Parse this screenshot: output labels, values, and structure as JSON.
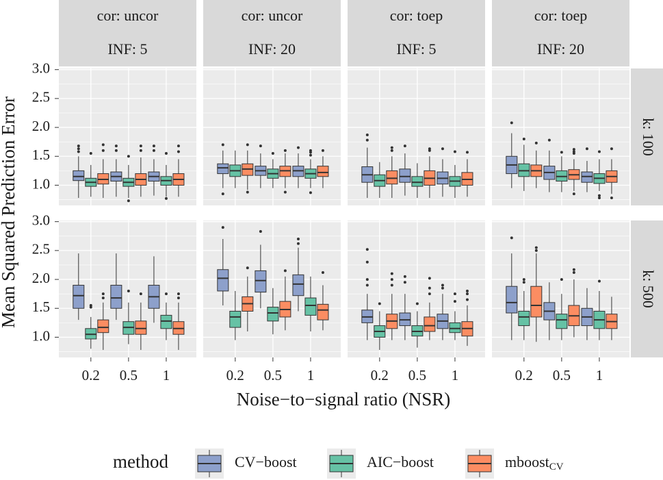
{
  "chart_data": {
    "type": "box",
    "xlabel": "Noise−to−signal ratio (NSR)",
    "ylabel": "Mean Squared Prediction Error",
    "legend_title": "method",
    "legend_position": "bottom",
    "categories": [
      "0.2",
      "0.5",
      "1"
    ],
    "series": [
      {
        "name": "CV−boost",
        "color": "#8da0cb"
      },
      {
        "name": "AIC−boost",
        "color": "#66c2a5"
      },
      {
        "name": "mboost",
        "name_subscript": "CV",
        "color": "#fc8d62"
      }
    ],
    "ylim": [
      0.65,
      3.02
    ],
    "yticks": [
      {
        "value": 1,
        "label": "1.0"
      },
      1.5,
      {
        "value": 2,
        "label": "2.0"
      },
      2.5,
      {
        "value": 3,
        "label": "3.0"
      }
    ],
    "minor_yticks": [
      0.75,
      1.25,
      1.75,
      2.25,
      2.75
    ],
    "grid": true,
    "col_strips": [
      [
        "cor: uncor",
        "INF: 5"
      ],
      [
        "cor: uncor",
        "INF: 20"
      ],
      [
        "cor: toep",
        "INF: 5"
      ],
      [
        "cor: toep",
        "INF: 20"
      ]
    ],
    "rows": [
      {
        "strip": "k: 100",
        "panels": [
          {
            "boxes": [
              [
                [
                  0.78,
                  1.08,
                  1.15,
                  1.25,
                  1.5,
                  [
                    1.58,
                    1.63,
                    1.68
                  ]
                ],
                [
                  0.8,
                  0.98,
                  1.05,
                  1.12,
                  1.35,
                  [
                    1.55
                  ]
                ],
                [
                  0.78,
                  1.02,
                  1.1,
                  1.2,
                  1.45,
                  [
                    1.6,
                    1.7
                  ]
                ]
              ],
              [
                [
                  0.8,
                  1.07,
                  1.15,
                  1.23,
                  1.45,
                  [
                    1.6,
                    1.68
                  ]
                ],
                [
                  0.78,
                  0.98,
                  1.05,
                  1.12,
                  1.35,
                  [
                    1.5,
                    0.73
                  ]
                ],
                [
                  0.8,
                  1.0,
                  1.1,
                  1.2,
                  1.48,
                  [
                    1.6,
                    1.68
                  ]
                ]
              ],
              [
                [
                  0.82,
                  1.07,
                  1.15,
                  1.23,
                  1.45,
                  [
                    1.6,
                    1.68
                  ]
                ],
                [
                  0.8,
                  1.0,
                  1.08,
                  1.15,
                  1.35,
                  [
                    1.55,
                    0.77
                  ]
                ],
                [
                  0.8,
                  1.0,
                  1.1,
                  1.2,
                  1.45,
                  [
                    1.58,
                    1.68
                  ]
                ]
              ]
            ]
          },
          {
            "boxes": [
              [
                [
                  0.95,
                  1.2,
                  1.3,
                  1.37,
                  1.6,
                  [
                    1.7,
                    0.85
                  ]
                ],
                [
                  0.95,
                  1.15,
                  1.25,
                  1.35,
                  1.6,
                  []
                ],
                [
                  0.92,
                  1.17,
                  1.28,
                  1.37,
                  1.6,
                  [
                    1.7,
                    0.88
                  ]
                ]
              ],
              [
                [
                  0.95,
                  1.17,
                  1.25,
                  1.33,
                  1.55,
                  [
                    1.68
                  ]
                ],
                [
                  0.95,
                  1.12,
                  1.2,
                  1.28,
                  1.45,
                  [
                    1.55
                  ]
                ],
                [
                  0.95,
                  1.15,
                  1.25,
                  1.33,
                  1.55,
                  [
                    0.88,
                    1.6
                  ]
                ]
              ],
              [
                [
                  0.95,
                  1.15,
                  1.25,
                  1.33,
                  1.55,
                  [
                    1.65
                  ]
                ],
                [
                  0.95,
                  1.12,
                  1.2,
                  1.28,
                  1.45,
                  [
                    1.52,
                    1.57,
                    1.6,
                    0.87
                  ]
                ],
                [
                  0.95,
                  1.15,
                  1.22,
                  1.33,
                  1.5,
                  [
                    1.6
                  ]
                ]
              ]
            ]
          },
          {
            "boxes": [
              [
                [
                  0.78,
                  1.05,
                  1.18,
                  1.32,
                  1.65,
                  [
                    1.78,
                    1.87
                  ]
                ],
                [
                  0.78,
                  0.98,
                  1.08,
                  1.18,
                  1.4,
                  []
                ],
                [
                  0.78,
                  1.02,
                  1.12,
                  1.25,
                  1.5,
                  [
                    1.6,
                    1.65
                  ]
                ]
              ],
              [
                [
                  0.82,
                  1.05,
                  1.15,
                  1.28,
                  1.55,
                  [
                    1.68
                  ]
                ],
                [
                  0.78,
                  0.98,
                  1.05,
                  1.15,
                  1.38,
                  []
                ],
                [
                  0.78,
                  1.0,
                  1.12,
                  1.25,
                  1.5,
                  [
                    1.6,
                    1.63
                  ]
                ]
              ],
              [
                [
                  0.8,
                  1.02,
                  1.12,
                  1.23,
                  1.45,
                  [
                    1.63
                  ]
                ],
                [
                  0.78,
                  0.98,
                  1.07,
                  1.15,
                  1.35,
                  [
                    1.58
                  ]
                ],
                [
                  0.8,
                  1.0,
                  1.1,
                  1.22,
                  1.45,
                  [
                    1.57
                  ]
                ]
              ]
            ]
          },
          {
            "boxes": [
              [
                [
                  0.95,
                  1.2,
                  1.35,
                  1.5,
                  1.9,
                  [
                    2.08
                  ]
                ],
                [
                  0.9,
                  1.15,
                  1.25,
                  1.37,
                  1.7,
                  [
                    1.8
                  ]
                ],
                [
                  0.95,
                  1.15,
                  1.25,
                  1.35,
                  1.6,
                  [
                    1.73
                  ]
                ]
              ],
              [
                [
                  0.88,
                  1.1,
                  1.22,
                  1.33,
                  1.6,
                  [
                    1.78
                  ]
                ],
                [
                  0.88,
                  1.07,
                  1.15,
                  1.25,
                  1.5,
                  [
                    1.57
                  ]
                ],
                [
                  0.9,
                  1.1,
                  1.18,
                  1.27,
                  1.45,
                  [
                    1.55,
                    1.58,
                    1.62,
                    0.85
                  ]
                ]
              ],
              [
                [
                  0.88,
                  1.05,
                  1.15,
                  1.23,
                  1.42,
                  [
                    1.63
                  ]
                ],
                [
                  0.9,
                  1.03,
                  1.12,
                  1.2,
                  1.45,
                  [
                    0.82,
                    0.78,
                    1.58
                  ]
                ],
                [
                  0.85,
                  1.05,
                  1.15,
                  1.25,
                  1.45,
                  [
                    1.63,
                    0.78
                  ]
                ]
              ]
            ]
          }
        ]
      },
      {
        "strip": "k: 500",
        "panels": [
          {
            "boxes": [
              [
                [
                  1.3,
                  1.5,
                  1.72,
                  1.9,
                  2.45,
                  []
                ],
                [
                  0.8,
                  0.97,
                  1.05,
                  1.15,
                  1.35,
                  [
                    1.55,
                    1.52
                  ]
                ],
                [
                  0.78,
                  1.08,
                  1.17,
                  1.3,
                  1.6,
                  [
                    1.68,
                    1.75
                  ]
                ]
              ],
              [
                [
                  1.3,
                  1.5,
                  1.68,
                  1.9,
                  2.45,
                  []
                ],
                [
                  0.88,
                  1.05,
                  1.17,
                  1.27,
                  1.6,
                  [
                    1.8
                  ]
                ],
                [
                  0.78,
                  1.05,
                  1.15,
                  1.28,
                  1.6,
                  [
                    1.75
                  ]
                ]
              ],
              [
                [
                  1.25,
                  1.5,
                  1.7,
                  1.9,
                  2.4,
                  []
                ],
                [
                  0.95,
                  1.15,
                  1.28,
                  1.38,
                  1.6,
                  [
                    1.75
                  ]
                ],
                [
                  0.78,
                  1.05,
                  1.15,
                  1.27,
                  1.6,
                  [
                    1.68,
                    1.75
                  ]
                ]
              ]
            ]
          },
          {
            "boxes": [
              [
                [
                  1.55,
                  1.8,
                  2.02,
                  2.17,
                  2.7,
                  [
                    2.9
                  ]
                ],
                [
                  0.95,
                  1.17,
                  1.35,
                  1.45,
                  1.8,
                  []
                ],
                [
                  1.1,
                  1.45,
                  1.58,
                  1.7,
                  2.05,
                  [
                    2.2
                  ]
                ]
              ],
              [
                [
                  1.5,
                  1.78,
                  1.98,
                  2.15,
                  2.6,
                  [
                    2.83
                  ]
                ],
                [
                  1.05,
                  1.28,
                  1.42,
                  1.52,
                  1.85,
                  []
                ],
                [
                  1.12,
                  1.35,
                  1.48,
                  1.62,
                  2.05,
                  [
                    2.15
                  ]
                ]
              ],
              [
                [
                  1.45,
                  1.72,
                  1.92,
                  2.08,
                  2.55,
                  [
                    2.62,
                    2.7
                  ]
                ],
                [
                  1.1,
                  1.38,
                  1.55,
                  1.68,
                  2.05,
                  []
                ],
                [
                  1.12,
                  1.3,
                  1.47,
                  1.57,
                  1.9,
                  [
                    2.12
                  ]
                ]
              ]
            ]
          },
          {
            "boxes": [
              [
                [
                  0.95,
                  1.25,
                  1.35,
                  1.47,
                  1.75,
                  [
                    1.9,
                    2.0,
                    2.3,
                    2.52
                  ]
                ],
                [
                  0.78,
                  1.0,
                  1.1,
                  1.2,
                  1.45,
                  [
                    1.58
                  ]
                ],
                [
                  0.95,
                  1.15,
                  1.28,
                  1.4,
                  1.75,
                  [
                    1.9,
                    2.0,
                    2.1
                  ]
                ]
              ],
              [
                [
                  0.95,
                  1.2,
                  1.3,
                  1.42,
                  1.75,
                  [
                    1.95,
                    2.05
                  ]
                ],
                [
                  0.82,
                  1.02,
                  1.1,
                  1.2,
                  1.45,
                  [
                    1.58
                  ]
                ],
                [
                  0.95,
                  1.1,
                  1.2,
                  1.35,
                  1.6,
                  [
                    1.75,
                    1.85,
                    2.02
                  ]
                ]
              ],
              [
                [
                  0.95,
                  1.15,
                  1.28,
                  1.4,
                  1.75,
                  [
                    1.85,
                    1.9
                  ]
                ],
                [
                  0.95,
                  1.08,
                  1.15,
                  1.25,
                  1.45,
                  [
                    1.62,
                    1.75
                  ]
                ],
                [
                  0.85,
                  1.02,
                  1.15,
                  1.27,
                  1.55,
                  [
                    1.65,
                    1.75,
                    1.8
                  ]
                ]
              ]
            ]
          },
          {
            "boxes": [
              [
                [
                  0.95,
                  1.42,
                  1.6,
                  1.88,
                  2.45,
                  [
                    2.72
                  ]
                ],
                [
                  0.95,
                  1.2,
                  1.35,
                  1.45,
                  1.8,
                  [
                    1.95,
                    2.0
                  ]
                ],
                [
                  0.92,
                  1.35,
                  1.55,
                  1.88,
                  2.45,
                  [
                    2.5,
                    2.55
                  ]
                ]
              ],
              [
                [
                  0.95,
                  1.3,
                  1.45,
                  1.6,
                  1.95,
                  []
                ],
                [
                  0.95,
                  1.15,
                  1.3,
                  1.4,
                  1.75,
                  [
                    2.0
                  ]
                ],
                [
                  1.0,
                  1.2,
                  1.37,
                  1.55,
                  2.0,
                  [
                    2.12,
                    2.17
                  ]
                ]
              ],
              [
                [
                  0.95,
                  1.2,
                  1.35,
                  1.5,
                  1.85,
                  []
                ],
                [
                  0.95,
                  1.15,
                  1.3,
                  1.45,
                  1.8,
                  [
                    1.97
                  ]
                ],
                [
                  0.95,
                  1.15,
                  1.27,
                  1.4,
                  1.7,
                  []
                ]
              ]
            ]
          }
        ]
      }
    ]
  }
}
